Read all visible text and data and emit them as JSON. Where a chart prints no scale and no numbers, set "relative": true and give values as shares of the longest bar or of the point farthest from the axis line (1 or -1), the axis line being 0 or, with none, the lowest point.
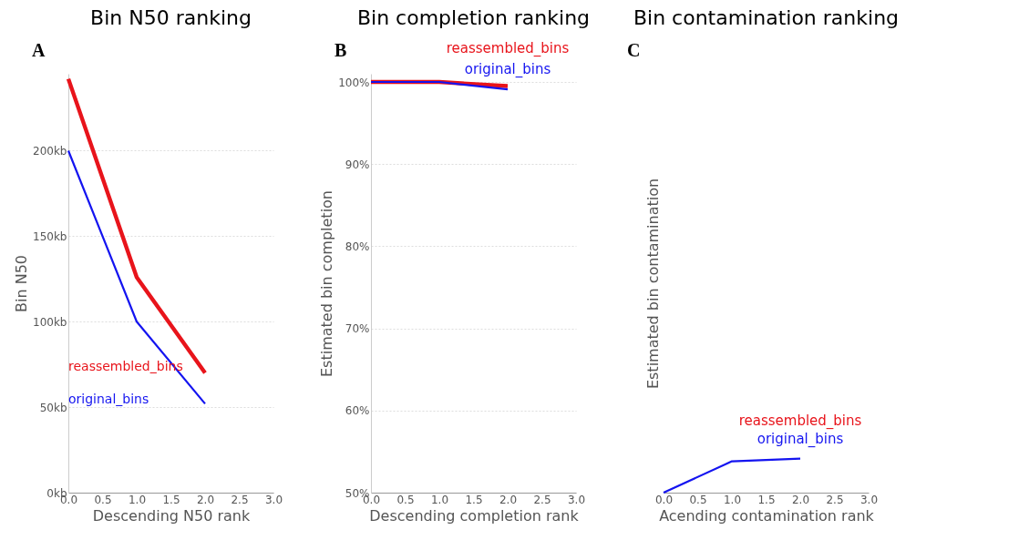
{
  "chart_data": [
    {
      "type": "line",
      "title": "Bin N50 ranking",
      "xlabel": "Descending N50 rank",
      "ylabel": "Bin N50",
      "annotations": [
        "A"
      ],
      "x": [
        0,
        1,
        2
      ],
      "series": [
        {
          "name": "reassembled_bins",
          "color": "#e8141b",
          "values": [
            242,
            126,
            70
          ]
        },
        {
          "name": "original_bins",
          "color": "#1414f0",
          "values": [
            200,
            100,
            52
          ]
        }
      ],
      "xlim": [
        0,
        3
      ],
      "xticks": [
        {
          "value": 0,
          "label": "0.0"
        },
        {
          "value": 0.5,
          "label": "0.5"
        },
        {
          "value": 1,
          "label": "1.0"
        },
        {
          "value": 1.5,
          "label": "1.5"
        },
        {
          "value": 2,
          "label": "2.0"
        },
        {
          "value": 2.5,
          "label": "2.5"
        },
        {
          "value": 3,
          "label": "3.0"
        }
      ],
      "ylim": [
        0,
        245
      ],
      "yticks": [
        {
          "value": 0,
          "label": "0kb"
        },
        {
          "value": 50,
          "label": "50kb"
        },
        {
          "value": 100,
          "label": "100kb"
        },
        {
          "value": 150,
          "label": "150kb"
        },
        {
          "value": 200,
          "label": "200kb"
        }
      ],
      "grid": "y",
      "legend": "left"
    },
    {
      "type": "line",
      "title": "Bin completion ranking",
      "xlabel": "Descending completion rank",
      "ylabel": "Estimated bin completion",
      "annotations": [
        "B"
      ],
      "x": [
        0,
        1,
        2
      ],
      "series": [
        {
          "name": "reassembled_bins",
          "color": "#e8141b",
          "values": [
            100,
            100,
            99.5
          ]
        },
        {
          "name": "original_bins",
          "color": "#1414f0",
          "values": [
            100,
            100,
            99.1
          ]
        }
      ],
      "xlim": [
        0,
        3
      ],
      "xticks": [
        {
          "value": 0,
          "label": "0.0"
        },
        {
          "value": 0.5,
          "label": "0.5"
        },
        {
          "value": 1,
          "label": "1.0"
        },
        {
          "value": 1.5,
          "label": "1.5"
        },
        {
          "value": 2,
          "label": "2.0"
        },
        {
          "value": 2.5,
          "label": "2.5"
        },
        {
          "value": 3,
          "label": "3.0"
        }
      ],
      "ylim": [
        50,
        101
      ],
      "yticks": [
        {
          "value": 50,
          "label": "50%"
        },
        {
          "value": 60,
          "label": "60%"
        },
        {
          "value": 70,
          "label": "70%"
        },
        {
          "value": 80,
          "label": "80%"
        },
        {
          "value": 90,
          "label": "90%"
        },
        {
          "value": 100,
          "label": "100%"
        }
      ],
      "grid": "y",
      "legend": false
    },
    {
      "type": "line",
      "title": "Bin contamination ranking",
      "xlabel": "Acending contamination rank",
      "ylabel": "Estimated bin contamination",
      "annotations": [
        "C"
      ],
      "x": [
        0,
        1,
        2
      ],
      "series": [
        {
          "name": "reassembled_bins",
          "color": "#e8141b",
          "values": [
            null,
            null,
            null
          ]
        },
        {
          "name": "original_bins",
          "color": "#1414f0",
          "values": [
            0,
            0.92,
            1
          ]
        }
      ],
      "xlim": [
        0,
        3
      ],
      "xticks": [
        {
          "value": 0,
          "label": "0.0"
        },
        {
          "value": 0.5,
          "label": "0.5"
        },
        {
          "value": 1,
          "label": "1.0"
        },
        {
          "value": 1.5,
          "label": "1.5"
        },
        {
          "value": 2,
          "label": "2.0"
        },
        {
          "value": 2.5,
          "label": "2.5"
        },
        {
          "value": 3,
          "label": "3.0"
        }
      ],
      "relative": true,
      "legend": false
    }
  ]
}
